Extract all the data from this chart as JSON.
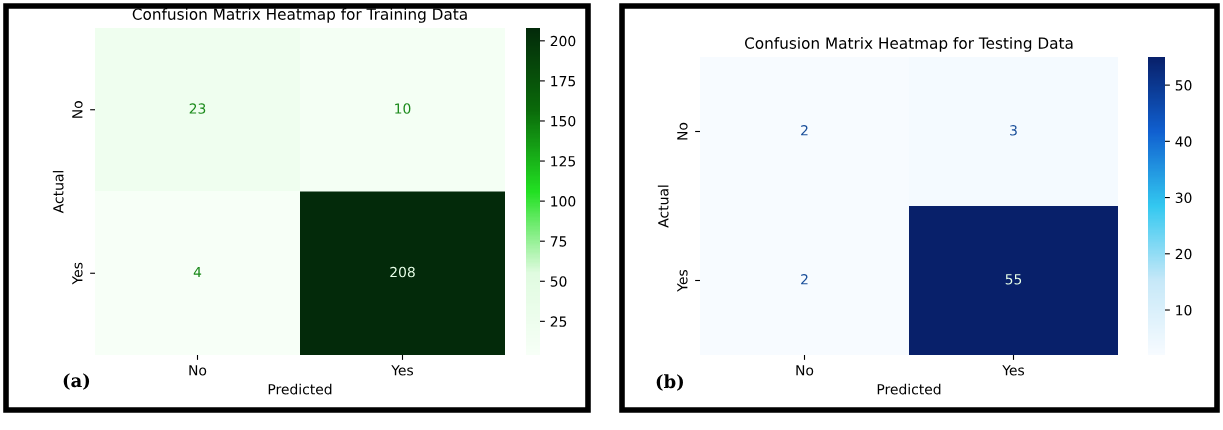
{
  "chart_data": [
    {
      "type": "heatmap",
      "title": "Confusion Matrix Heatmap for Training Data",
      "xlabel": "Predicted",
      "ylabel": "Actual",
      "categories": [
        "No",
        "Yes"
      ],
      "y_categories": [
        "No",
        "Yes"
      ],
      "cells": [
        [
          23,
          10
        ],
        [
          4,
          208
        ]
      ],
      "data_labels": true,
      "clim": [
        4,
        208
      ],
      "cticks": [
        25,
        50,
        75,
        100,
        125,
        150,
        175,
        200
      ],
      "annotations": [
        "(a)"
      ]
    },
    {
      "type": "heatmap",
      "title": "Confusion Matrix Heatmap for Testing Data",
      "xlabel": "Predicted",
      "ylabel": "Actual",
      "categories": [
        "No",
        "Yes"
      ],
      "y_categories": [
        "No",
        "Yes"
      ],
      "cells": [
        [
          2,
          3
        ],
        [
          2,
          55
        ]
      ],
      "data_labels": true,
      "clim": [
        2,
        55
      ],
      "cticks": [
        10,
        20,
        30,
        40,
        50
      ],
      "annotations": [
        "(b)"
      ]
    }
  ]
}
